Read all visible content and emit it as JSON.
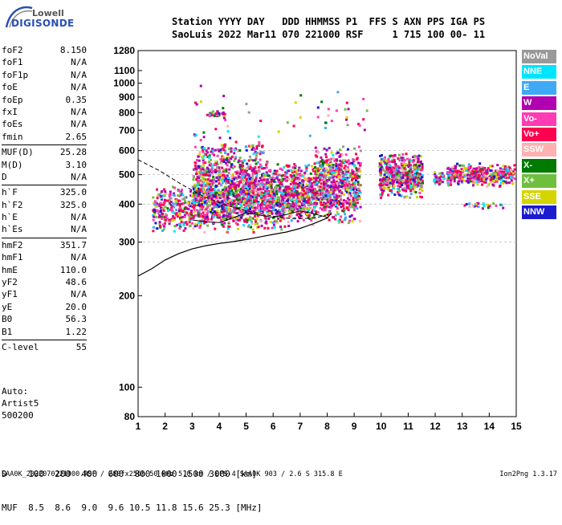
{
  "logo": {
    "line1": "Lowell",
    "line2": "DIGISONDE"
  },
  "header": {
    "row1": "Station YYYY DAY   DDD HHMMSS P1  FFS S AXN PPS IGA PS",
    "row2": "SaoLuis 2022 Mar11 070 221000 RSF     1 715 100 00- 11"
  },
  "params": [
    {
      "group": [
        {
          "name": "foF2",
          "value": "8.150"
        },
        {
          "name": "foF1",
          "value": "N/A"
        },
        {
          "name": "foF1p",
          "value": "N/A"
        },
        {
          "name": "foE",
          "value": "N/A"
        },
        {
          "name": "foEp",
          "value": "0.35"
        },
        {
          "name": "fxI",
          "value": "N/A"
        },
        {
          "name": "foEs",
          "value": "N/A"
        },
        {
          "name": "fmin",
          "value": "2.65"
        }
      ]
    },
    {
      "group": [
        {
          "name": "MUF(D)",
          "value": "25.28"
        },
        {
          "name": "M(D)",
          "value": "3.10"
        },
        {
          "name": "D",
          "value": "N/A"
        }
      ]
    },
    {
      "group": [
        {
          "name": "h`F",
          "value": "325.0"
        },
        {
          "name": "h`F2",
          "value": "325.0"
        },
        {
          "name": "h`E",
          "value": "N/A"
        },
        {
          "name": "h`Es",
          "value": "N/A"
        }
      ]
    },
    {
      "group": [
        {
          "name": "hmF2",
          "value": "351.7"
        },
        {
          "name": "hmF1",
          "value": "N/A"
        },
        {
          "name": "hmE",
          "value": "110.0"
        },
        {
          "name": "yF2",
          "value": "48.6"
        },
        {
          "name": "yF1",
          "value": "N/A"
        },
        {
          "name": "yE",
          "value": "20.0"
        },
        {
          "name": "B0",
          "value": "56.3"
        },
        {
          "name": "B1",
          "value": "1.22"
        }
      ]
    },
    {
      "group": [
        {
          "name": "C-level",
          "value": "55"
        }
      ]
    }
  ],
  "auto": {
    "line1": "Auto:",
    "line2": "Artist5",
    "line3": "500200"
  },
  "legend": [
    {
      "label": "NoVal",
      "color": "#999999"
    },
    {
      "label": "NNE",
      "color": "#00e5ff"
    },
    {
      "label": "E",
      "color": "#3fa9f5"
    },
    {
      "label": "W",
      "color": "#b000b0"
    },
    {
      "label": "Vo-",
      "color": "#ff3cb4"
    },
    {
      "label": "Vo+",
      "color": "#ff0050"
    },
    {
      "label": "SSW",
      "color": "#ffb0b0"
    },
    {
      "label": "X-",
      "color": "#007a00"
    },
    {
      "label": "X+",
      "color": "#6fbf3f"
    },
    {
      "label": "SSE",
      "color": "#d4d400"
    },
    {
      "label": "NNW",
      "color": "#1a1ad0"
    }
  ],
  "chart_data": {
    "type": "scatter",
    "title": "",
    "xlabel": "",
    "ylabel": "",
    "xlim": [
      1,
      15
    ],
    "ylim": [
      80,
      1280
    ],
    "y_scale": "log",
    "x_ticks": [
      1,
      2,
      3,
      4,
      5,
      6,
      7,
      8,
      9,
      10,
      11,
      12,
      13,
      14,
      15
    ],
    "y_ticks": [
      80,
      100,
      200,
      300,
      400,
      500,
      600,
      700,
      800,
      900,
      1000,
      1100,
      1280
    ],
    "grid_y": [
      300,
      400,
      500,
      600
    ],
    "clusters": [
      {
        "x": [
          1.5,
          3.0
        ],
        "y": [
          320,
          470
        ],
        "n": 260
      },
      {
        "x": [
          3.0,
          5.4
        ],
        "y": [
          320,
          600
        ],
        "n": 1200
      },
      {
        "x": [
          5.4,
          6.4
        ],
        "y": [
          330,
          560
        ],
        "n": 380
      },
      {
        "x": [
          6.4,
          7.5
        ],
        "y": [
          340,
          560
        ],
        "n": 420
      },
      {
        "x": [
          7.5,
          9.2
        ],
        "y": [
          340,
          640
        ],
        "n": 650
      },
      {
        "x": [
          9.9,
          11.5
        ],
        "y": [
          420,
          600
        ],
        "n": 520
      },
      {
        "x": [
          11.9,
          12.3
        ],
        "y": [
          460,
          520
        ],
        "n": 40
      },
      {
        "x": [
          12.4,
          14.9
        ],
        "y": [
          460,
          550
        ],
        "n": 420
      },
      {
        "x": [
          3.2,
          5.6
        ],
        "y": [
          580,
          640
        ],
        "n": 60
      },
      {
        "x": [
          3.5,
          4.2
        ],
        "y": [
          780,
          820
        ],
        "n": 30
      },
      {
        "x": [
          3.0,
          5.5
        ],
        "y": [
          400,
          1050
        ],
        "n": 60
      },
      {
        "x": [
          6.0,
          9.5
        ],
        "y": [
          650,
          1000
        ],
        "n": 30
      },
      {
        "x": [
          13.0,
          14.5
        ],
        "y": [
          390,
          410
        ],
        "n": 25
      }
    ],
    "virtual_trace": {
      "x": [
        1.0,
        1.5,
        2.0,
        2.5,
        3.0,
        3.5,
        4.0,
        4.5,
        5.0,
        5.5,
        6.0,
        6.5,
        7.0,
        7.5,
        8.0,
        8.15
      ],
      "y": [
        232,
        245,
        262,
        275,
        285,
        292,
        297,
        301,
        306,
        312,
        318,
        324,
        333,
        345,
        360,
        372
      ]
    },
    "profile": {
      "x": [
        1.0,
        1.8,
        2.6,
        3.4,
        4.2,
        5.0,
        5.8,
        6.4,
        7.0,
        7.6,
        8.15
      ],
      "y": [
        560,
        515,
        465,
        425,
        398,
        380,
        368,
        360,
        358,
        361,
        372
      ]
    },
    "fitted_trace": {
      "x": [
        3.0,
        3.5,
        4.0,
        4.5,
        5.0,
        5.5,
        6.0,
        6.5,
        7.0,
        7.5,
        8.0
      ],
      "y": [
        355,
        350,
        348,
        360,
        375,
        368,
        362,
        370,
        380,
        372,
        362
      ]
    }
  },
  "footer": {
    "row1": "D    100  200  400  600  800 1000 1500 3000 [km]",
    "row2": "MUF  8.5  8.6  9.0  9.6 10.5 11.8 15.6 25.3 [MHz]",
    "bottom": "SAA0K_2022070221000.RSF / 280fx256h 50 kHz 5.0 km / DPS-4 SAA0K 903 / 2.6 S 315.8 E",
    "version": "Ion2Png 1.3.17"
  }
}
